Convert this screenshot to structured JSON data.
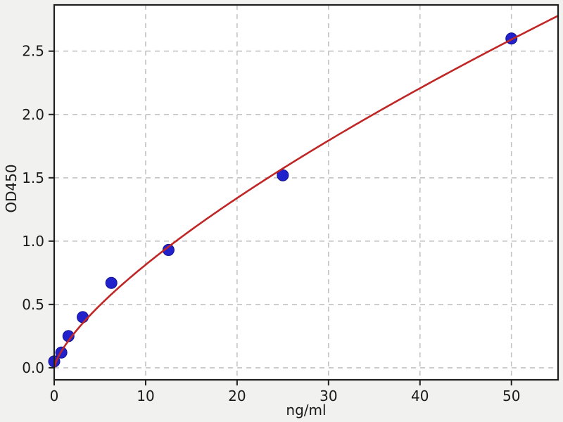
{
  "figure": {
    "background_color": "#f1f1ef",
    "plot_background_color": "#ffffff",
    "border_color": "#1f1f1f",
    "grid_color": "#c3c3c3",
    "tick_color": "#1f1f1f",
    "text_color": "#1a1a1a"
  },
  "chart_data": {
    "type": "scatter",
    "title": "",
    "xlabel": "ng/ml",
    "ylabel": "OD450",
    "xlim": [
      0,
      55.1
    ],
    "ylim": [
      -0.095,
      2.865
    ],
    "xticks": [
      0,
      10,
      20,
      30,
      40,
      50
    ],
    "xtick_labels": [
      "0",
      "10",
      "20",
      "30",
      "40",
      "50"
    ],
    "yticks": [
      0.0,
      0.5,
      1.0,
      1.5,
      2.0,
      2.5
    ],
    "ytick_labels": [
      "0.0",
      "0.5",
      "1.0",
      "1.5",
      "2.0",
      "2.5"
    ],
    "grid": true,
    "grid_style": "dashed",
    "legend": "none",
    "points": [
      {
        "x": 0,
        "y": 0.05
      },
      {
        "x": 0.78,
        "y": 0.12
      },
      {
        "x": 1.56,
        "y": 0.25
      },
      {
        "x": 3.12,
        "y": 0.4
      },
      {
        "x": 6.25,
        "y": 0.67
      },
      {
        "x": 12.5,
        "y": 0.93
      },
      {
        "x": 25,
        "y": 1.52
      },
      {
        "x": 50,
        "y": 2.6
      }
    ],
    "point_color": "#2222cc",
    "point_edge_color": "#13118f",
    "fit_curve": {
      "type": "power",
      "formula": "y = a * x^b",
      "a": 0.155,
      "b": 0.72,
      "color": "#c02626"
    }
  }
}
